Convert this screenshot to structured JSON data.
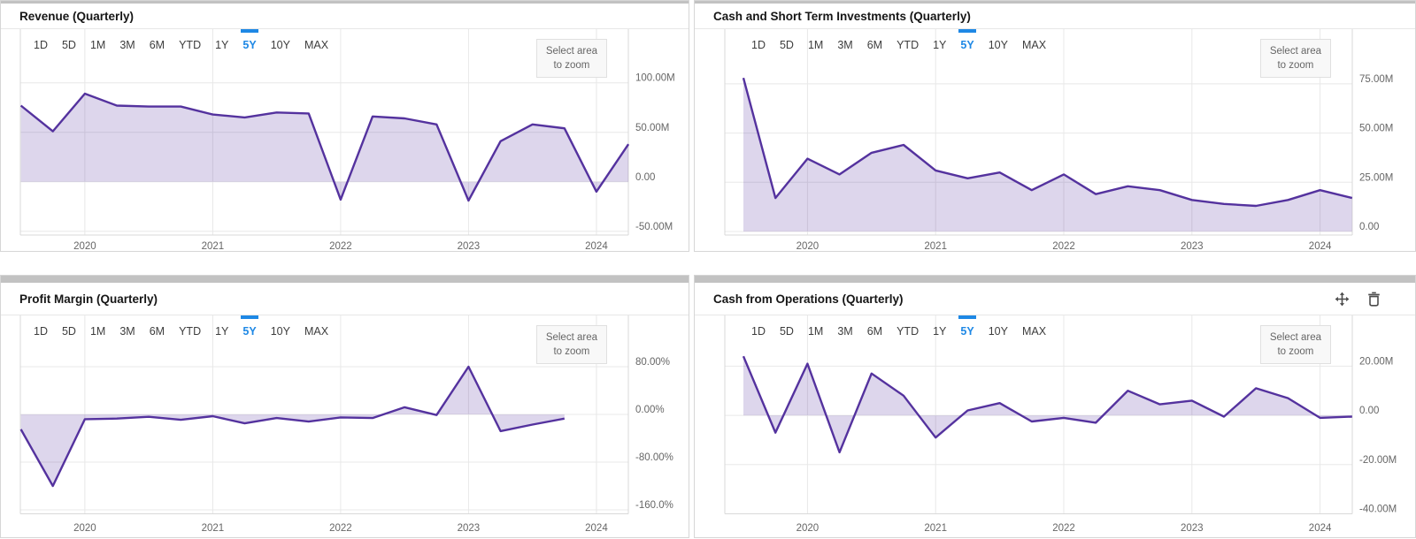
{
  "colors": {
    "accent": "#1e88e5",
    "line": "#54329e",
    "fill": "rgba(84,50,158,0.2)",
    "gridline": "#e8e8e8",
    "plot_border": "#d9d9d9"
  },
  "range_tabs": {
    "options": [
      "1D",
      "5D",
      "1M",
      "3M",
      "6M",
      "YTD",
      "1Y",
      "5Y",
      "10Y",
      "MAX"
    ],
    "selected": "5Y"
  },
  "zoom_button": {
    "line1": "Select area",
    "line2": "to zoom"
  },
  "panels": [
    {
      "header_icons": []
    },
    {
      "header_icons": []
    },
    {
      "header_icons": []
    },
    {
      "header_icons": [
        "move-icon",
        "trash-icon"
      ]
    }
  ],
  "chart_data": [
    {
      "type": "area",
      "title": "Revenue (Quarterly)",
      "value_suffix": "M",
      "x_tick_labels": [
        "2020",
        "2021",
        "2022",
        "2023",
        "2024"
      ],
      "quarters": [
        "2019-Q2",
        "2019-Q3",
        "2019-Q4",
        "2020-Q1",
        "2020-Q2",
        "2020-Q3",
        "2020-Q4",
        "2021-Q1",
        "2021-Q2",
        "2021-Q3",
        "2021-Q4",
        "2022-Q1",
        "2022-Q2",
        "2022-Q3",
        "2022-Q4",
        "2023-Q1",
        "2023-Q2",
        "2023-Q3",
        "2023-Q4",
        "2024-Q1"
      ],
      "values_millions": [
        77,
        51,
        89,
        77,
        76,
        76,
        68,
        65,
        70,
        69,
        -18,
        66,
        64,
        58,
        -19,
        41,
        58,
        54,
        -10,
        38
      ],
      "y_ticks": [
        {
          "value": 100,
          "label": "100.00M"
        },
        {
          "value": 50,
          "label": "50.00M"
        },
        {
          "value": 0,
          "label": "0.00"
        },
        {
          "value": -50,
          "label": "-50.00M"
        }
      ],
      "ylim": [
        -53.8,
        154.2
      ],
      "grid": true,
      "legend": "none"
    },
    {
      "type": "area",
      "title": "Cash and Short Term Investments (Quarterly)",
      "value_suffix": "M",
      "x_tick_labels": [
        "2020",
        "2021",
        "2022",
        "2023",
        "2024"
      ],
      "quarters": [
        "2019-Q2",
        "2019-Q3",
        "2019-Q4",
        "2020-Q1",
        "2020-Q2",
        "2020-Q3",
        "2020-Q4",
        "2021-Q1",
        "2021-Q2",
        "2021-Q3",
        "2021-Q4",
        "2022-Q1",
        "2022-Q2",
        "2022-Q3",
        "2022-Q4",
        "2023-Q1",
        "2023-Q2",
        "2023-Q3",
        "2023-Q4",
        "2024-Q1"
      ],
      "values_millions": [
        78,
        17,
        37,
        29,
        40,
        44,
        31,
        27,
        30,
        21,
        29,
        19,
        23,
        21,
        16,
        14,
        13,
        16,
        21,
        17
      ],
      "y_ticks": [
        {
          "value": 75,
          "label": "75.00M"
        },
        {
          "value": 50,
          "label": "50.00M"
        },
        {
          "value": 25,
          "label": "25.00M"
        },
        {
          "value": 0,
          "label": "0.00"
        }
      ],
      "ylim": [
        -1.8,
        102.8
      ],
      "grid": true,
      "legend": "none"
    },
    {
      "type": "area",
      "title": "Profit Margin (Quarterly)",
      "value_suffix": "%",
      "x_tick_labels": [
        "2020",
        "2021",
        "2022",
        "2023",
        "2024"
      ],
      "quarters": [
        "2019-Q2",
        "2019-Q3",
        "2019-Q4",
        "2020-Q1",
        "2020-Q2",
        "2020-Q3",
        "2020-Q4",
        "2021-Q1",
        "2021-Q2",
        "2021-Q3",
        "2021-Q4",
        "2022-Q1",
        "2022-Q2",
        "2022-Q3",
        "2022-Q4",
        "2023-Q1",
        "2023-Q2",
        "2023-Q3"
      ],
      "values_percent": [
        -25,
        -120,
        -8,
        -7,
        -4,
        -9,
        -3,
        -15,
        -6,
        -12,
        -5,
        -6,
        12,
        -1,
        80,
        -28,
        -17,
        -7
      ],
      "y_ticks": [
        {
          "value": 80,
          "label": "80.00%"
        },
        {
          "value": 0,
          "label": "0.00%"
        },
        {
          "value": -80,
          "label": "-80.00%"
        },
        {
          "value": -160,
          "label": "-160.0%"
        }
      ],
      "ylim": [
        -166.7,
        166
      ],
      "grid": true,
      "legend": "none"
    },
    {
      "type": "area",
      "title": "Cash from Operations (Quarterly)",
      "value_suffix": "M",
      "x_tick_labels": [
        "2020",
        "2021",
        "2022",
        "2023",
        "2024"
      ],
      "quarters": [
        "2019-Q2",
        "2019-Q3",
        "2019-Q4",
        "2020-Q1",
        "2020-Q2",
        "2020-Q3",
        "2020-Q4",
        "2021-Q1",
        "2021-Q2",
        "2021-Q3",
        "2021-Q4",
        "2022-Q1",
        "2022-Q2",
        "2022-Q3",
        "2022-Q4",
        "2023-Q1",
        "2023-Q2",
        "2023-Q3",
        "2023-Q4",
        "2024-Q1"
      ],
      "values_millions": [
        24,
        -7,
        21,
        -15,
        17,
        8,
        -9,
        2,
        5,
        -2.5,
        -1,
        -3,
        10,
        4.5,
        6,
        -0.5,
        11,
        7,
        -1,
        -0.5
      ],
      "y_ticks": [
        {
          "value": 20,
          "label": "20.00M"
        },
        {
          "value": 0,
          "label": "0.00"
        },
        {
          "value": -20,
          "label": "-20.00M"
        },
        {
          "value": -40,
          "label": "-40.00M"
        }
      ],
      "ylim": [
        -40,
        40.6
      ],
      "grid": true,
      "legend": "none"
    }
  ]
}
